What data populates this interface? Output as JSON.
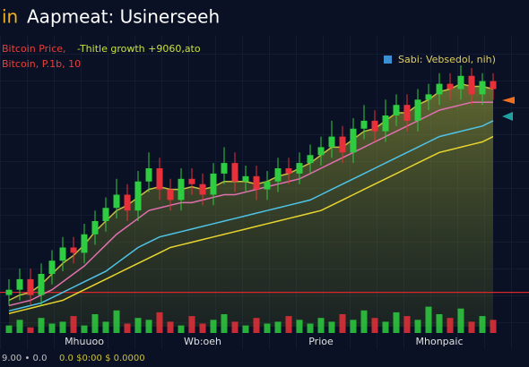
{
  "chart_data": {
    "type": "candlestick",
    "title_prefix": "in",
    "title": "Aapmeat: Usinerseeh",
    "subtitle_a": "Bitcoin Price,",
    "subtitle_b": "-Thitle growth +9060,ato",
    "subtitle_line2": "Bitcoin, P.1b, 10",
    "legend_text": "Sabi: Vebsedol, nih)",
    "footer_a": "9.00 • 0.0",
    "footer_b": "0.0 $0:00 $ 0.0000",
    "categories": [
      null,
      null,
      null,
      null,
      null,
      null,
      null,
      "Mhuuoo",
      null,
      null,
      null,
      null,
      null,
      null,
      null,
      null,
      null,
      null,
      "Wb:oeh",
      null,
      null,
      null,
      null,
      null,
      null,
      null,
      null,
      null,
      null,
      "Prioe",
      null,
      null,
      null,
      null,
      null,
      null,
      null,
      null,
      null,
      null,
      "Mhonpaic",
      null,
      null,
      null,
      null,
      null
    ],
    "open": [
      12,
      14,
      18,
      12,
      20,
      25,
      30,
      28,
      35,
      40,
      45,
      50,
      44,
      55,
      60,
      52,
      48,
      56,
      54,
      50,
      58,
      62,
      55,
      57,
      52,
      55,
      60,
      58,
      62,
      65,
      68,
      72,
      66,
      75,
      78,
      74,
      80,
      84,
      78,
      86,
      88,
      92,
      90,
      95,
      88,
      93
    ],
    "close": [
      14,
      18,
      12,
      20,
      25,
      30,
      28,
      35,
      40,
      45,
      50,
      44,
      55,
      60,
      52,
      48,
      56,
      54,
      50,
      58,
      62,
      55,
      57,
      52,
      55,
      60,
      58,
      62,
      65,
      68,
      72,
      66,
      75,
      78,
      74,
      80,
      84,
      78,
      86,
      88,
      92,
      90,
      95,
      88,
      93,
      90
    ],
    "high": [
      18,
      22,
      22,
      24,
      29,
      34,
      34,
      39,
      44,
      49,
      56,
      54,
      59,
      66,
      64,
      56,
      60,
      60,
      58,
      62,
      68,
      66,
      61,
      61,
      59,
      64,
      64,
      66,
      69,
      72,
      78,
      76,
      79,
      84,
      82,
      86,
      88,
      88,
      90,
      92,
      96,
      96,
      99,
      98,
      96,
      96
    ],
    "low": [
      8,
      10,
      8,
      8,
      16,
      21,
      24,
      24,
      31,
      36,
      41,
      40,
      40,
      51,
      48,
      44,
      44,
      50,
      46,
      46,
      54,
      51,
      51,
      48,
      48,
      51,
      54,
      54,
      58,
      61,
      64,
      62,
      62,
      71,
      70,
      70,
      76,
      74,
      74,
      82,
      84,
      86,
      86,
      84,
      84,
      86
    ],
    "volume": [
      20,
      35,
      15,
      40,
      25,
      30,
      45,
      20,
      50,
      30,
      60,
      25,
      40,
      35,
      55,
      30,
      20,
      45,
      25,
      35,
      50,
      30,
      20,
      40,
      25,
      30,
      45,
      35,
      25,
      40,
      30,
      50,
      35,
      60,
      40,
      30,
      55,
      45,
      35,
      70,
      50,
      40,
      65,
      30,
      45,
      35
    ],
    "up_color": "#2ecc40",
    "down_color": "#e8303a",
    "ylim": [
      0,
      100
    ],
    "volume_ylim": [
      0,
      100
    ],
    "hline": {
      "value": 13,
      "color": "#d6282c"
    },
    "series": [
      {
        "color": "#e8d530",
        "values": [
          5,
          6,
          7,
          8,
          9,
          10,
          12,
          14,
          16,
          18,
          20,
          22,
          24,
          26,
          28,
          30,
          31,
          32,
          33,
          34,
          35,
          36,
          37,
          38,
          39,
          40,
          41,
          42,
          43,
          44,
          46,
          48,
          50,
          52,
          54,
          56,
          58,
          60,
          62,
          64,
          66,
          67,
          68,
          69,
          70,
          72
        ]
      },
      {
        "color": "#4fc3e8",
        "values": [
          6,
          7,
          8,
          9,
          11,
          13,
          15,
          17,
          19,
          21,
          24,
          27,
          30,
          32,
          34,
          35,
          36,
          37,
          38,
          39,
          40,
          41,
          42,
          43,
          44,
          45,
          46,
          47,
          48,
          50,
          52,
          54,
          56,
          58,
          60,
          62,
          64,
          66,
          68,
          70,
          72,
          73,
          74,
          75,
          76,
          78
        ]
      },
      {
        "color": "#e070b0",
        "values": [
          8,
          9,
          10,
          12,
          14,
          17,
          20,
          23,
          27,
          31,
          35,
          38,
          41,
          44,
          45,
          46,
          47,
          47,
          48,
          49,
          50,
          50,
          51,
          52,
          53,
          54,
          55,
          56,
          58,
          60,
          62,
          64,
          66,
          68,
          70,
          72,
          74,
          76,
          78,
          80,
          82,
          83,
          84,
          85,
          85,
          85
        ]
      },
      {
        "color": "#c8c040",
        "area": true,
        "values": [
          10,
          12,
          13,
          16,
          20,
          24,
          27,
          31,
          36,
          40,
          44,
          46,
          49,
          52,
          53,
          52,
          52,
          53,
          52,
          53,
          55,
          55,
          55,
          54,
          55,
          57,
          58,
          60,
          62,
          65,
          68,
          68,
          71,
          74,
          75,
          78,
          81,
          81,
          84,
          86,
          89,
          90,
          92,
          91,
          91,
          90
        ]
      }
    ]
  }
}
